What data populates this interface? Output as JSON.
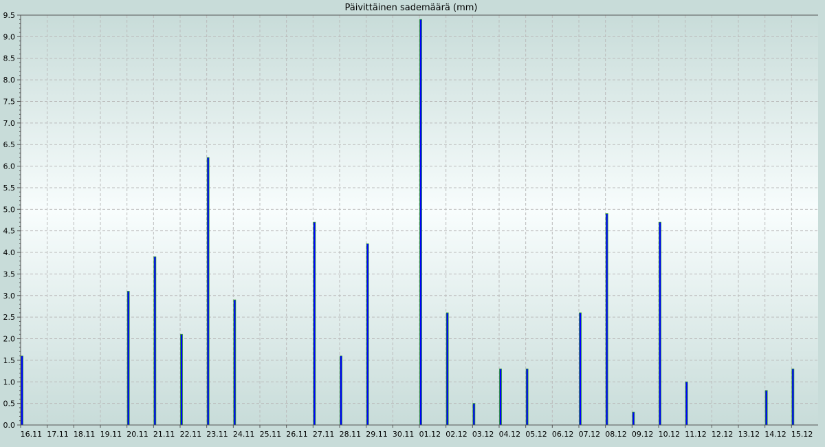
{
  "chart_data": {
    "type": "bar",
    "title": "Päivittäinen sademäärä (mm)",
    "xlabel": "",
    "ylabel": "",
    "ylim": [
      0,
      9.5
    ],
    "yticks": [
      "0.0",
      "0.5",
      "1.0",
      "1.5",
      "2.0",
      "2.5",
      "3.0",
      "3.5",
      "4.0",
      "4.5",
      "5.0",
      "5.5",
      "6.0",
      "6.5",
      "7.0",
      "7.5",
      "8.0",
      "8.5",
      "9.0",
      "9.5"
    ],
    "grid": true,
    "categories": [
      "16.11",
      "17.11",
      "18.11",
      "19.11",
      "20.11",
      "21.11",
      "22.11",
      "23.11",
      "24.11",
      "25.11",
      "26.11",
      "27.11",
      "28.11",
      "29.11",
      "30.11",
      "01.12",
      "02.12",
      "03.12",
      "04.12",
      "05.12",
      "06.12",
      "07.12",
      "08.12",
      "09.12",
      "10.12",
      "11.12",
      "12.12",
      "13.12",
      "14.12",
      "15.12"
    ],
    "values": [
      1.6,
      0,
      0,
      0,
      3.1,
      3.9,
      2.1,
      6.2,
      2.9,
      0,
      0,
      4.7,
      1.6,
      4.2,
      0,
      9.4,
      2.6,
      0.5,
      1.3,
      1.3,
      0,
      2.6,
      4.9,
      0.3,
      4.7,
      1.0,
      0,
      0,
      0.8,
      1.3
    ],
    "colors": {
      "bar_fill": "#0000ff",
      "bar_edge": "#2e9a2e",
      "grid": "#bbbbbb",
      "background": "#c8dcd9",
      "plot_center": "#f8fdfd"
    }
  }
}
